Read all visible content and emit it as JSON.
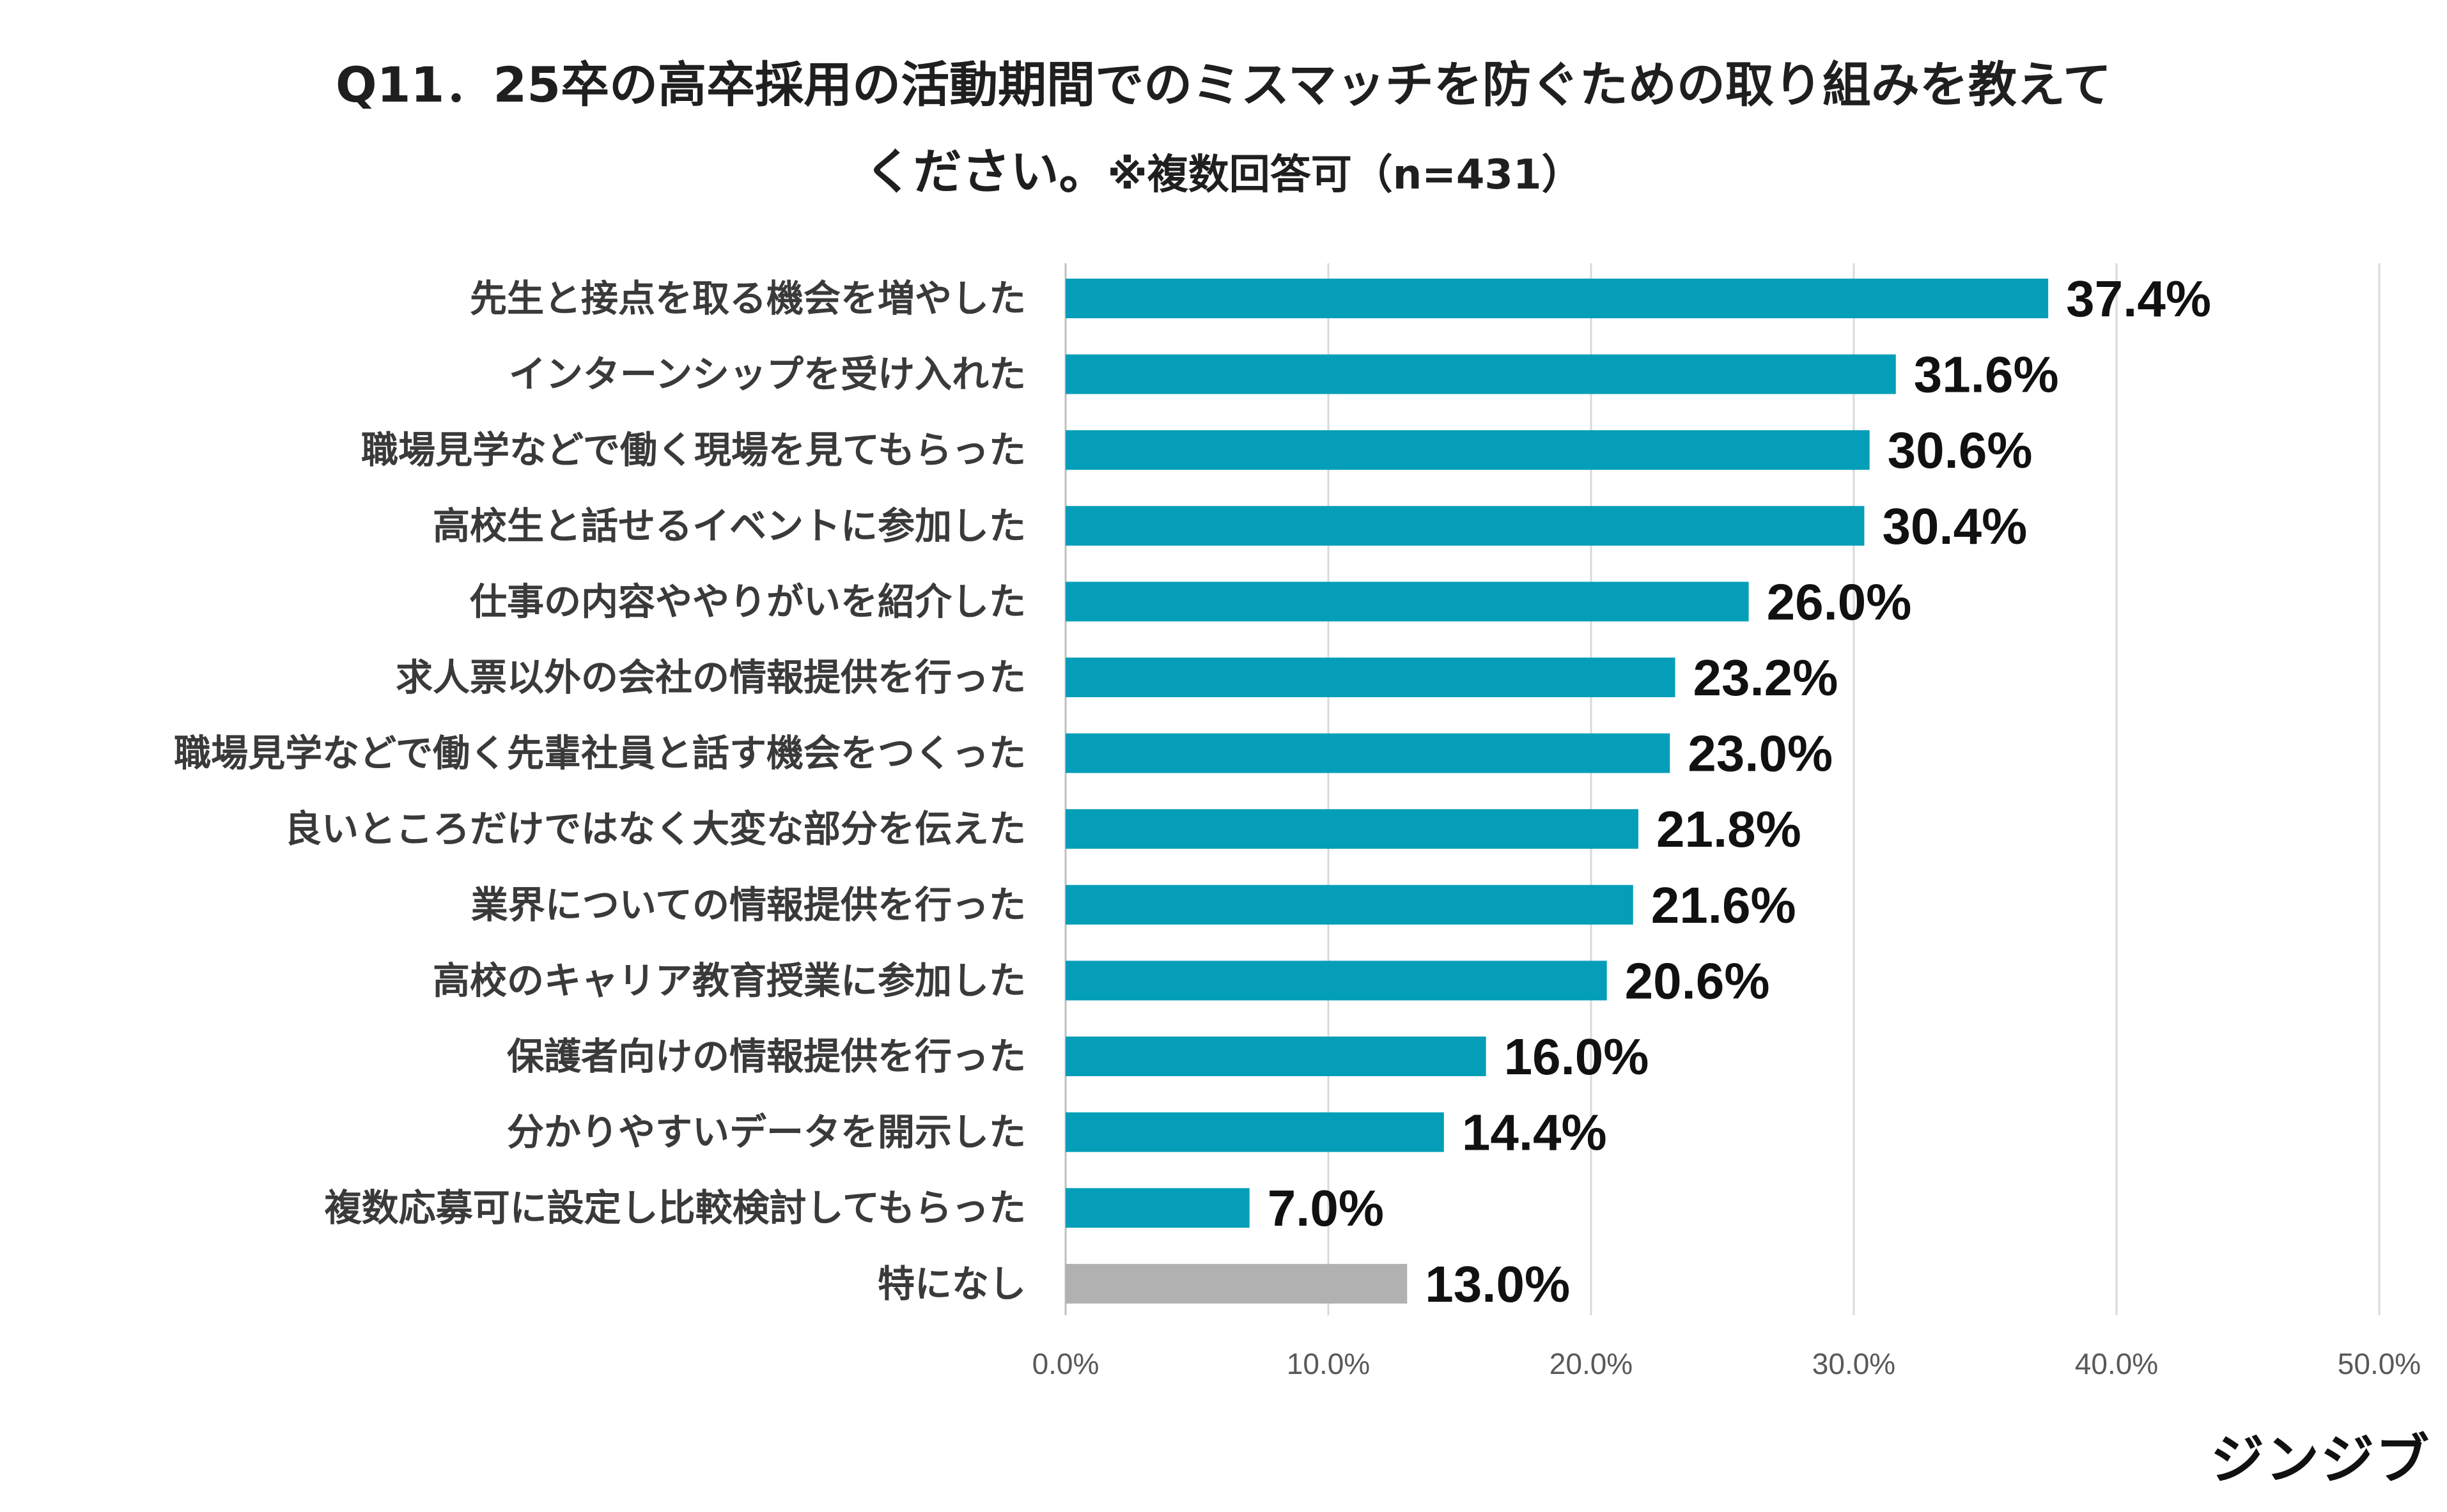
{
  "title": {
    "line1": "Q11．25卒の高卒採用の活動期間でのミスマッチを防ぐための取り組みを教えて",
    "line2_main": "ください。",
    "line2_note": "※複数回答可（n=431）"
  },
  "brand": "ジンジブ",
  "colors": {
    "bar": "#059EB8",
    "bar_none": "#B1B1B1",
    "grid": "#D9D9D9",
    "axis": "#BFBFBF"
  },
  "chart_data": {
    "type": "bar",
    "orientation": "horizontal",
    "categories": [
      "先生と接点を取る機会を増やした",
      "インターンシップを受け入れた",
      "職場見学などで働く現場を見てもらった",
      "高校生と話せるイベントに参加した",
      "仕事の内容ややりがいを紹介した",
      "求人票以外の会社の情報提供を行った",
      "職場見学などで働く先輩社員と話す機会をつくった",
      "良いところだけではなく大変な部分を伝えた",
      "業界についての情報提供を行った",
      "高校のキャリア教育授業に参加した",
      "保護者向けの情報提供を行った",
      "分かりやすいデータを開示した",
      "複数応募可に設定し比較検討してもらった",
      "特になし"
    ],
    "values": [
      37.4,
      31.6,
      30.6,
      30.4,
      26.0,
      23.2,
      23.0,
      21.8,
      21.6,
      20.6,
      16.0,
      14.4,
      7.0,
      13.0
    ],
    "value_labels": [
      "37.4%",
      "31.6%",
      "30.6%",
      "30.4%",
      "26.0%",
      "23.2%",
      "23.0%",
      "21.8%",
      "21.6%",
      "20.6%",
      "16.0%",
      "14.4%",
      "7.0%",
      "13.0%"
    ],
    "highlight": [
      false,
      false,
      false,
      false,
      false,
      false,
      false,
      false,
      false,
      false,
      false,
      false,
      false,
      true
    ],
    "xlim": [
      0,
      50
    ],
    "ticks": [
      0,
      10,
      20,
      30,
      40,
      50
    ],
    "tick_labels": [
      "0.0%",
      "10.0%",
      "20.0%",
      "30.0%",
      "40.0%",
      "50.0%"
    ],
    "grid": true,
    "legend": "none"
  }
}
